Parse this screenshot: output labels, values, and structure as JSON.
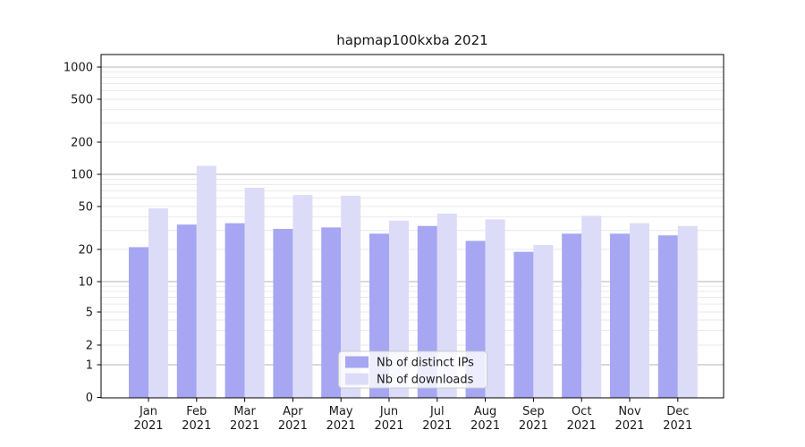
{
  "title": "hapmap100kxba 2021",
  "colors": {
    "background": "#ffffff",
    "spine": "#000000",
    "text": "#1a1a1a",
    "grid_major": "#b3b3b3",
    "grid_minor": "#e8e8e8",
    "ips_bar": "#a6a6f2",
    "downloads_bar": "#dcdcf9",
    "legend_border": "#cccccc",
    "legend_bg": "#ffffff"
  },
  "chart_data": {
    "type": "bar",
    "title": "hapmap100kxba 2021",
    "year": "2021",
    "month_labels": [
      "Jan",
      "Feb",
      "Mar",
      "Apr",
      "May",
      "Jun",
      "Jul",
      "Aug",
      "Sep",
      "Oct",
      "Nov",
      "Dec"
    ],
    "categories": [
      "Jan 2021",
      "Feb 2021",
      "Mar 2021",
      "Apr 2021",
      "May 2021",
      "Jun 2021",
      "Jul 2021",
      "Aug 2021",
      "Sep 2021",
      "Oct 2021",
      "Nov 2021",
      "Dec 2021"
    ],
    "series": [
      {
        "name": "Nb of distinct IPs",
        "color_key": "ips_bar",
        "values": [
          21,
          34,
          35,
          31,
          32,
          28,
          33,
          24,
          19,
          28,
          28,
          27
        ]
      },
      {
        "name": "Nb of downloads",
        "color_key": "downloads_bar",
        "values": [
          48,
          120,
          75,
          64,
          63,
          37,
          43,
          38,
          22,
          41,
          35,
          33
        ]
      }
    ],
    "xlabel": "",
    "ylabel": "",
    "yscale": "symlog",
    "ylim": [
      0,
      1300
    ],
    "yticks": [
      0,
      1,
      2,
      5,
      10,
      20,
      50,
      100,
      200,
      500,
      1000
    ],
    "major_gridlines": [
      1,
      10,
      100,
      1000
    ],
    "minor_gridlines": [
      2,
      3,
      4,
      5,
      6,
      7,
      8,
      9,
      20,
      30,
      40,
      50,
      60,
      70,
      80,
      90,
      200,
      300,
      400,
      500,
      600,
      700,
      800,
      900
    ],
    "grid": true,
    "legend_position": "lower center"
  }
}
